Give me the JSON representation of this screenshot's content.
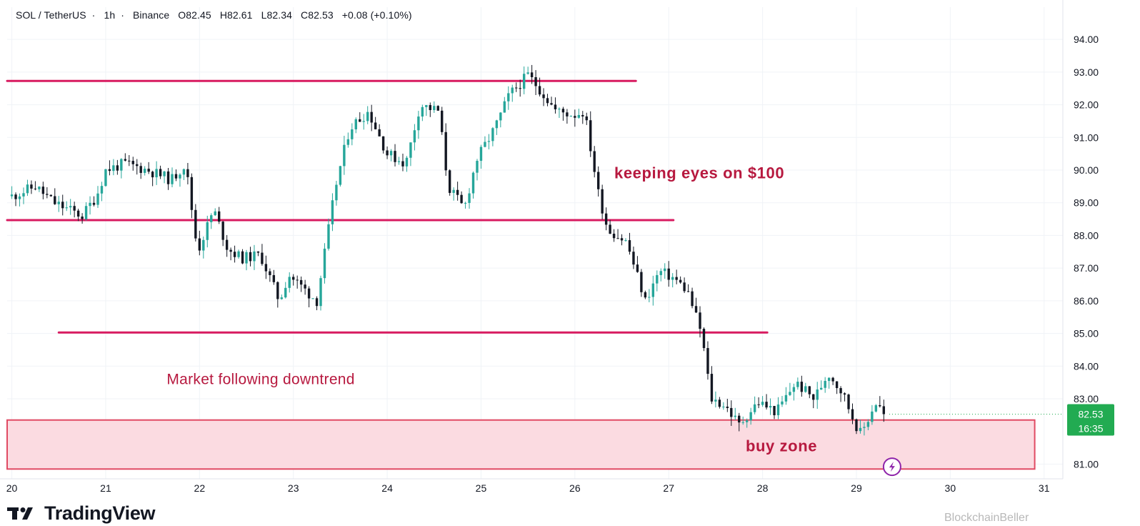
{
  "header": {
    "symbol": "SOL / TetherUS",
    "interval": "1h",
    "exchange": "Binance",
    "open": "O82.45",
    "high": "H82.61",
    "low": "L82.34",
    "close": "C82.53",
    "change": "+0.08 (+0.10%)"
  },
  "brand": {
    "name": "TradingView"
  },
  "watermark": "BlockchainBeller",
  "colors": {
    "up": "#26a69a",
    "down": "#131722",
    "level_line": "#d81b60",
    "zone_fill": "#fbdbe1",
    "zone_border": "#e04a63",
    "annotation": "#b7193f",
    "price_badge": "#22ab52",
    "lightning_badge": "#8e24aa"
  },
  "chart_data": {
    "type": "candlestick",
    "x_unit": "day of month",
    "x_ticks": [
      "20",
      "21",
      "22",
      "23",
      "24",
      "25",
      "26",
      "27",
      "28",
      "29",
      "30",
      "31"
    ],
    "y_ticks": [
      "81.00",
      "83.00",
      "84.00",
      "85.00",
      "86.00",
      "87.00",
      "88.00",
      "89.00",
      "90.00",
      "91.00",
      "92.00",
      "93.00",
      "94.00"
    ],
    "ylim": [
      80.55,
      94.55
    ],
    "xlim": [
      19.95,
      31.2
    ],
    "grid": true,
    "last_price": {
      "value": "82.53",
      "countdown": "16:35"
    },
    "horizontal_levels": [
      {
        "price": 92.73,
        "x_start": 19.95,
        "x_end": 26.65
      },
      {
        "price": 88.47,
        "x_start": 19.95,
        "x_end": 27.05
      },
      {
        "price": 85.03,
        "x_start": 20.5,
        "x_end": 28.05
      }
    ],
    "zone": {
      "y_low": 80.85,
      "y_high": 82.35,
      "x_start": 19.95,
      "x_end": 30.9
    },
    "annotations": [
      {
        "text": "keeping eyes on $100",
        "x": 26.42,
        "y": 89.9
      },
      {
        "text": "Market following downtrend",
        "x": 21.65,
        "y": 83.6
      },
      {
        "text": "buy zone",
        "x": 27.82,
        "y": 81.55
      }
    ],
    "waypoints": [
      [
        20.0,
        89.2
      ],
      [
        20.25,
        89.5
      ],
      [
        20.45,
        89.0
      ],
      [
        20.75,
        88.6
      ],
      [
        20.9,
        89.2
      ],
      [
        21.0,
        90.0
      ],
      [
        21.2,
        90.2
      ],
      [
        21.45,
        90.0
      ],
      [
        21.7,
        89.7
      ],
      [
        21.85,
        90.2
      ],
      [
        21.98,
        87.5
      ],
      [
        22.15,
        88.8
      ],
      [
        22.3,
        87.6
      ],
      [
        22.45,
        87.3
      ],
      [
        22.65,
        87.4
      ],
      [
        22.85,
        86.0
      ],
      [
        22.95,
        86.8
      ],
      [
        23.1,
        86.4
      ],
      [
        23.25,
        86.0
      ],
      [
        23.45,
        89.5
      ],
      [
        23.6,
        91.3
      ],
      [
        23.8,
        91.8
      ],
      [
        24.0,
        90.5
      ],
      [
        24.2,
        90.2
      ],
      [
        24.35,
        92.0
      ],
      [
        24.55,
        91.8
      ],
      [
        24.65,
        89.5
      ],
      [
        24.82,
        88.8
      ],
      [
        24.95,
        90.3
      ],
      [
        25.15,
        91.3
      ],
      [
        25.3,
        92.3
      ],
      [
        25.5,
        92.9
      ],
      [
        25.62,
        92.5
      ],
      [
        25.8,
        91.8
      ],
      [
        26.0,
        91.7
      ],
      [
        26.1,
        91.8
      ],
      [
        26.25,
        89.3
      ],
      [
        26.35,
        88.2
      ],
      [
        26.55,
        87.8
      ],
      [
        26.75,
        86.0
      ],
      [
        26.9,
        86.9
      ],
      [
        27.05,
        86.7
      ],
      [
        27.2,
        86.3
      ],
      [
        27.35,
        85.0
      ],
      [
        27.45,
        83.0
      ],
      [
        27.6,
        82.8
      ],
      [
        27.75,
        82.2
      ],
      [
        27.95,
        82.9
      ],
      [
        28.15,
        82.6
      ],
      [
        28.35,
        83.5
      ],
      [
        28.55,
        83.0
      ],
      [
        28.7,
        83.8
      ],
      [
        28.85,
        83.2
      ],
      [
        28.98,
        82.3
      ],
      [
        29.05,
        81.9
      ],
      [
        29.2,
        82.9
      ],
      [
        29.32,
        82.5
      ]
    ]
  }
}
